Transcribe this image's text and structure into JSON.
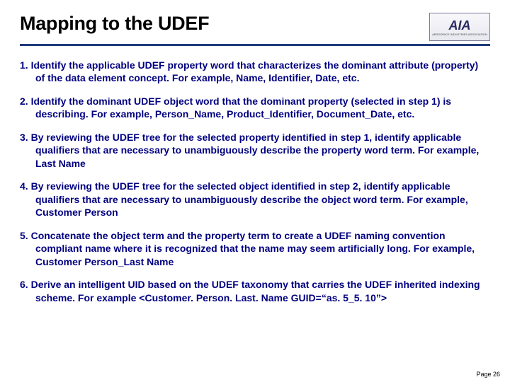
{
  "background_color": "#ffffff",
  "title": "Mapping to the UDEF",
  "title_color": "#000000",
  "title_fontsize": 27,
  "divider_color": "#1f3a7a",
  "logo_text": "AIA",
  "logo_subtext": "AEROSPACE INDUSTRIES ASSOCIATION",
  "body_color": "#000080",
  "body_fontsize": 14,
  "body_fontweight": "bold",
  "steps": [
    "Identify the applicable UDEF property word that characterizes the dominant attribute (property) of the data element concept. For example, Name, Identifier, Date, etc.",
    "Identify the dominant UDEF object word that the dominant property (selected in step 1) is describing. For example, Person_Name, Product_Identifier, Document_Date, etc.",
    "By reviewing the UDEF tree for the selected property identified in step 1, identify applicable qualifiers that are necessary to unambiguously describe the property word term. For example, Last Name",
    "By reviewing the UDEF tree for the selected object identified in step 2, identify applicable qualifiers that are necessary to unambiguously describe the object word term. For example, Customer Person",
    "Concatenate the object term and the property term to create a UDEF naming convention compliant name where it is recognized that the name may seem artificially long. For example, Customer Person_Last Name",
    "Derive an intelligent UID based on the UDEF taxonomy that carries the UDEF inherited indexing scheme. For example <Customer. Person. Last. Name GUID=“as. 5_5. 10”>"
  ],
  "page_label": "Page 26"
}
